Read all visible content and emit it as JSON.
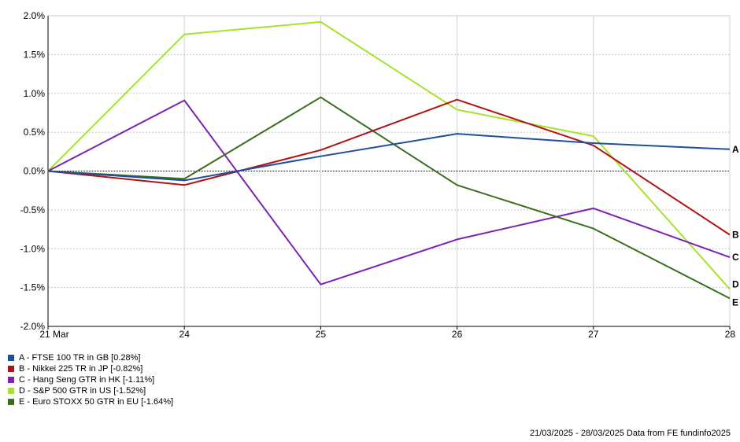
{
  "chart_data": {
    "type": "line",
    "categories": [
      "21 Mar",
      "24",
      "25",
      "26",
      "27",
      "28"
    ],
    "y_ticks": [
      "2.0%",
      "1.5%",
      "1.0%",
      "0.5%",
      "0.0%",
      "-0.5%",
      "-1.0%",
      "-1.5%",
      "-2.0%"
    ],
    "ylim": [
      -2.0,
      2.0
    ],
    "grid": true,
    "legend_position": "bottom-left",
    "series": [
      {
        "key": "A",
        "name": "A - FTSE 100 TR in GB [0.28%]",
        "color": "#1f4e9c",
        "values": [
          0.0,
          -0.12,
          0.19,
          0.48,
          0.36,
          0.28
        ]
      },
      {
        "key": "B",
        "name": "B - Nikkei 225 TR in JP [-0.82%]",
        "color": "#b11216",
        "values": [
          0.0,
          -0.18,
          0.27,
          0.92,
          0.33,
          -0.82
        ]
      },
      {
        "key": "C",
        "name": "C - Hang Seng GTR in HK [-1.11%]",
        "color": "#7b22b5",
        "values": [
          0.0,
          0.91,
          -1.46,
          -0.88,
          -0.48,
          -1.11
        ]
      },
      {
        "key": "D",
        "name": "D - S&P 500 GTR in US [-1.52%]",
        "color": "#a6e22e",
        "values": [
          0.0,
          1.76,
          1.92,
          0.79,
          0.45,
          -1.52
        ]
      },
      {
        "key": "E",
        "name": "E - Euro STOXX 50 GTR in EU [-1.64%]",
        "color": "#3a6e1c",
        "values": [
          0.0,
          -0.1,
          0.95,
          -0.18,
          -0.74,
          -1.64
        ]
      }
    ]
  },
  "footer": "21/03/2025 - 28/03/2025 Data from FE fundinfo2025"
}
